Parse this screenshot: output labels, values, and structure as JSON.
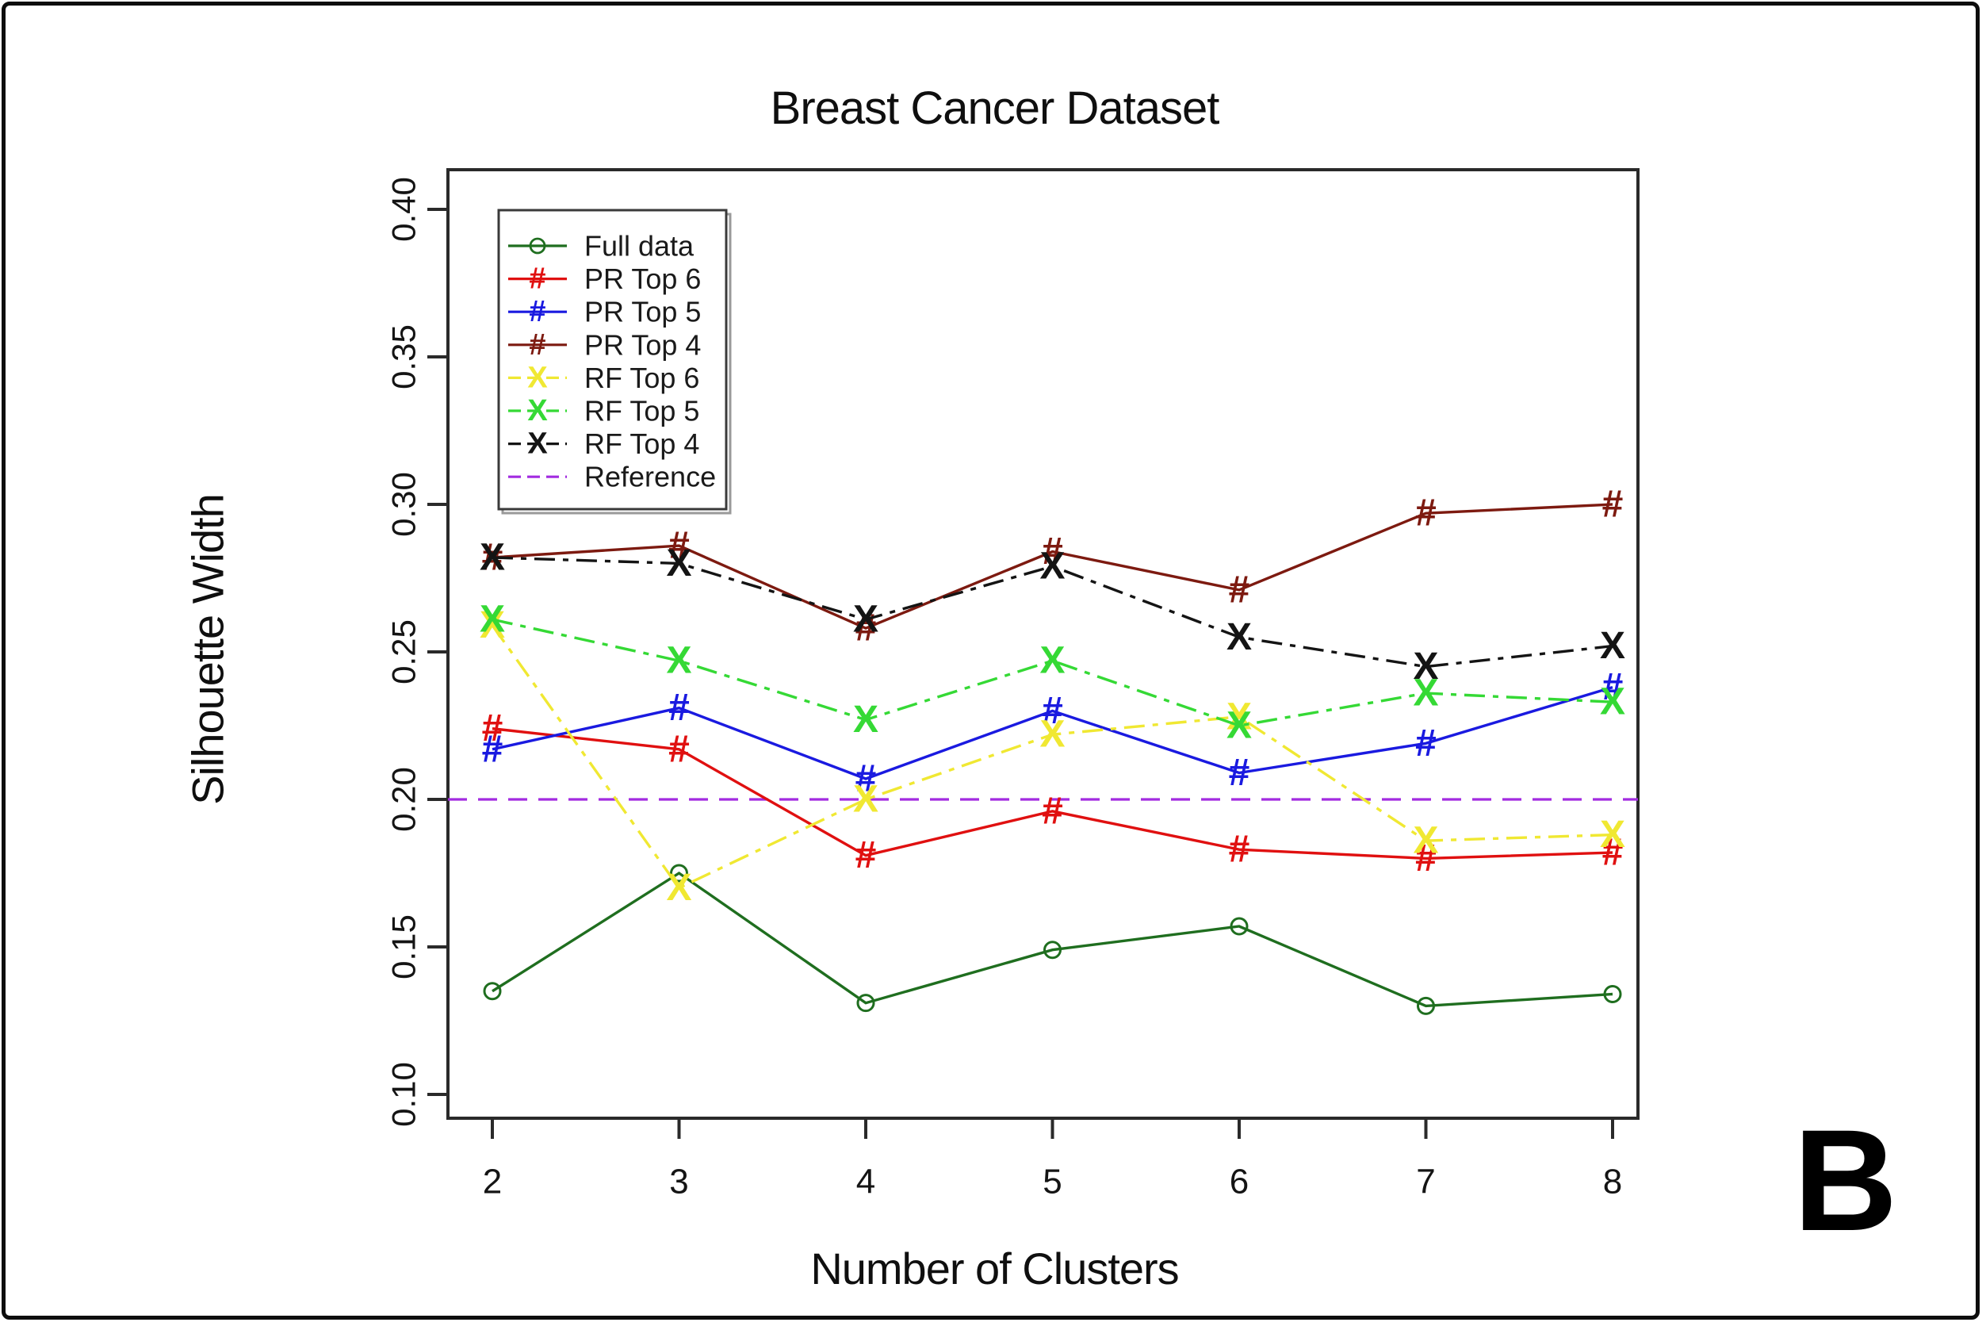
{
  "panel_label": "B",
  "chart_data": {
    "type": "line",
    "title": "Breast Cancer Dataset",
    "xlabel": "Number of Clusters",
    "ylabel": "Silhouette Width",
    "x": [
      2,
      3,
      4,
      5,
      6,
      7,
      8
    ],
    "xticks": [
      "2",
      "3",
      "4",
      "5",
      "6",
      "7",
      "8"
    ],
    "yticks": [
      0.1,
      0.15,
      0.2,
      0.25,
      0.3,
      0.35,
      0.4
    ],
    "ytick_labels": [
      "0.10",
      "0.15",
      "0.20",
      "0.25",
      "0.30",
      "0.35",
      "0.40"
    ],
    "xlim": [
      1.76,
      8.13
    ],
    "ylim": [
      0.092,
      0.413
    ],
    "grid": false,
    "legend_position": "top-left",
    "series": [
      {
        "name": "Full data",
        "color": "#1f6e1f",
        "marker": "circle",
        "linestyle": "solid",
        "values": [
          0.135,
          0.175,
          0.131,
          0.149,
          0.157,
          0.13,
          0.134
        ]
      },
      {
        "name": "PR Top 6",
        "color": "#e01010",
        "marker": "#",
        "linestyle": "solid",
        "values": [
          0.224,
          0.217,
          0.181,
          0.196,
          0.183,
          0.18,
          0.182
        ]
      },
      {
        "name": "PR Top 5",
        "color": "#1a1ae0",
        "marker": "#",
        "linestyle": "solid",
        "values": [
          0.217,
          0.231,
          0.207,
          0.23,
          0.209,
          0.219,
          0.238
        ]
      },
      {
        "name": "PR Top 4",
        "color": "#7d1a10",
        "marker": "#",
        "linestyle": "solid",
        "values": [
          0.282,
          0.286,
          0.258,
          0.284,
          0.271,
          0.297,
          0.3
        ]
      },
      {
        "name": "RF Top 6",
        "color": "#f0e832",
        "marker": "X",
        "linestyle": "dashdot",
        "values": [
          0.259,
          0.17,
          0.2,
          0.222,
          0.228,
          0.186,
          0.188
        ]
      },
      {
        "name": "RF Top 5",
        "color": "#35d935",
        "marker": "X",
        "linestyle": "dashdot",
        "values": [
          0.261,
          0.247,
          0.227,
          0.247,
          0.225,
          0.236,
          0.233
        ]
      },
      {
        "name": "RF Top 4",
        "color": "#141414",
        "marker": "X",
        "linestyle": "dashdot",
        "values": [
          0.282,
          0.28,
          0.261,
          0.279,
          0.255,
          0.245,
          0.252
        ]
      }
    ],
    "reference": {
      "label": "Reference",
      "color": "#a22be0",
      "linestyle": "dashed",
      "value": 0.2
    }
  }
}
